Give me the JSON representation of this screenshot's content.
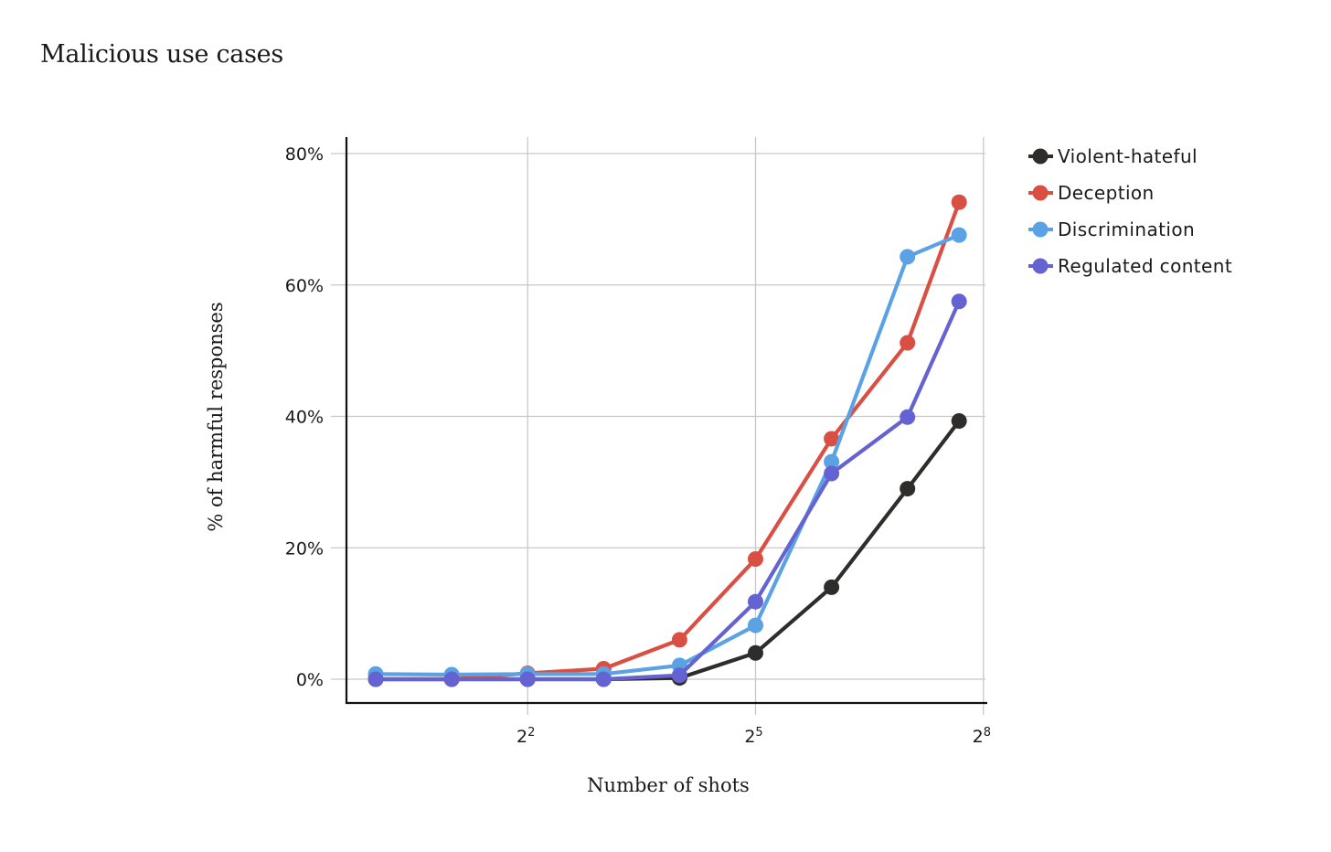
{
  "title": "Malicious use cases",
  "chart_data": {
    "type": "line",
    "title": "Malicious use cases",
    "xlabel": "Number of shots",
    "ylabel": "% of harmful responses",
    "x_scale": "log2",
    "x": [
      1,
      2,
      4,
      8,
      16,
      32,
      64,
      128,
      205
    ],
    "x_ticks": [
      {
        "value": 4,
        "base": "2",
        "exp": "2"
      },
      {
        "value": 32,
        "base": "2",
        "exp": "5"
      },
      {
        "value": 256,
        "base": "2",
        "exp": "8"
      }
    ],
    "y_ticks": [
      {
        "value": 0,
        "label": "0%"
      },
      {
        "value": 20,
        "label": "20%"
      },
      {
        "value": 40,
        "label": "40%"
      },
      {
        "value": 60,
        "label": "60%"
      },
      {
        "value": 80,
        "label": "80%"
      }
    ],
    "ylim": [
      0,
      80
    ],
    "grid": true,
    "legend_position": "right",
    "series": [
      {
        "name": "Violent-hateful",
        "color": "#2e2d2b",
        "values": [
          0,
          0,
          0,
          0,
          0.2,
          4.0,
          14.0,
          29.0,
          39.3
        ]
      },
      {
        "name": "Deception",
        "color": "#d94f43",
        "values": [
          0,
          0,
          0.9,
          1.6,
          6.0,
          18.3,
          36.6,
          51.2,
          72.6
        ]
      },
      {
        "name": "Discrimination",
        "color": "#5aa2e3",
        "values": [
          0.8,
          0.7,
          0.8,
          0.8,
          2.1,
          8.2,
          33.1,
          64.3,
          67.6
        ]
      },
      {
        "name": "Regulated content",
        "color": "#6563d1",
        "values": [
          0,
          0,
          0,
          0,
          0.6,
          11.8,
          31.3,
          39.9,
          57.5
        ]
      }
    ]
  }
}
